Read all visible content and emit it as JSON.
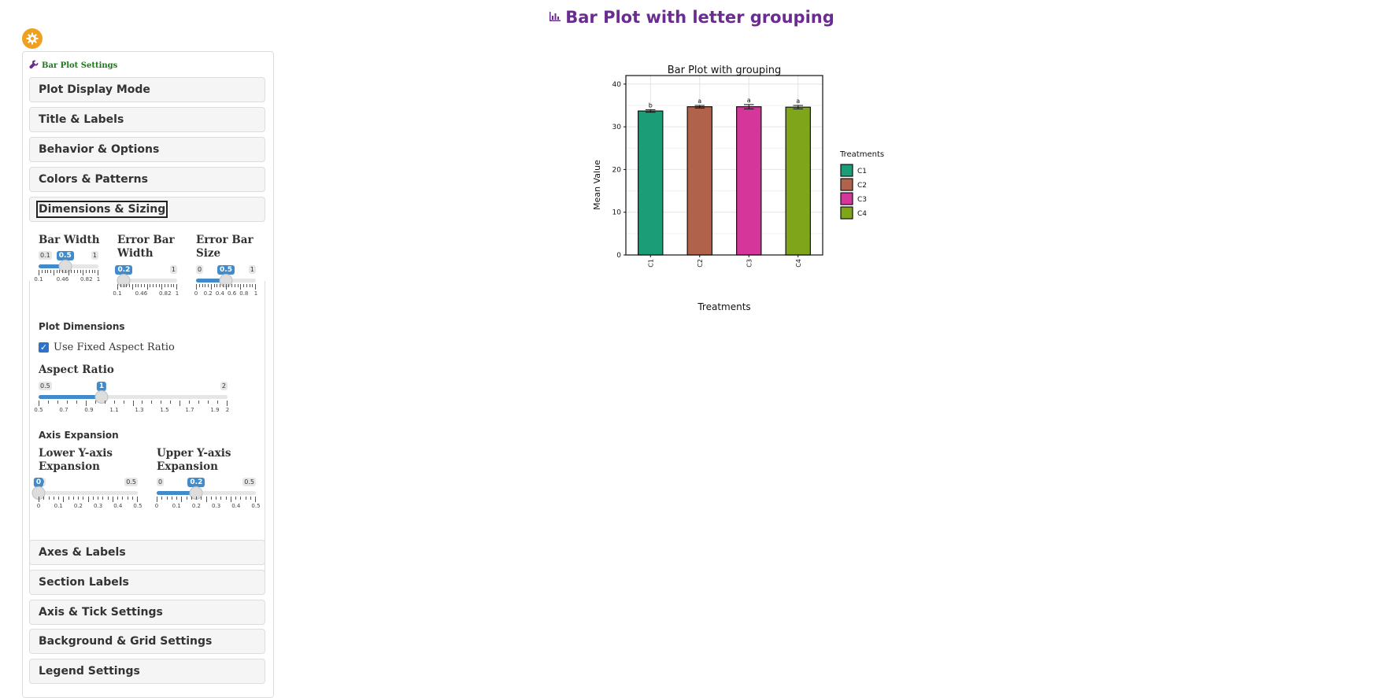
{
  "page": {
    "title": "Bar Plot with letter grouping",
    "accent_color": "#6a2c91",
    "title_icon": "bar-chart-icon"
  },
  "panel": {
    "header": "Bar Plot Settings",
    "header_icon": "wrench-icon",
    "gear_icon": "gear-icon",
    "accordions_top": [
      "Plot Display Mode",
      "Title & Labels",
      "Behavior & Options",
      "Colors & Patterns",
      "Dimensions & Sizing"
    ],
    "accordions_bottom": [
      "Axes & Labels",
      "Section Labels",
      "Axis & Tick Settings",
      "Background & Grid Settings",
      "Legend Settings"
    ],
    "dimensions": {
      "bar_width": {
        "label": "Bar Width",
        "min": "0.1",
        "max": "1",
        "value": "0.5",
        "value_num": 0.5,
        "lo": 0.1,
        "hi": 1,
        "ticks": [
          "0.1",
          "0.46",
          "0.82",
          "1"
        ]
      },
      "error_bar_width": {
        "label": "Error Bar Width",
        "min": "0.1",
        "max": "1",
        "value": "0.2",
        "value_num": 0.2,
        "lo": 0.1,
        "hi": 1,
        "ticks": [
          "0.1",
          "0.46",
          "0.82",
          "1"
        ]
      },
      "error_bar_size": {
        "label": "Error Bar Size",
        "min": "0",
        "max": "1",
        "value": "0.5",
        "value_num": 0.5,
        "lo": 0,
        "hi": 1,
        "ticks": [
          "0",
          "0.2",
          "0.4",
          "0.6",
          "0.8",
          "1"
        ]
      },
      "plot_dimensions_label": "Plot Dimensions",
      "fixed_aspect_label": "Use Fixed Aspect Ratio",
      "fixed_aspect_checked": true,
      "aspect_ratio": {
        "label": "Aspect Ratio",
        "min": "0.5",
        "max": "2",
        "value": "1",
        "value_num": 1,
        "lo": 0.5,
        "hi": 2,
        "ticks": [
          "0.5",
          "0.7",
          "0.9",
          "1.1",
          "1.3",
          "1.5",
          "1.7",
          "1.9",
          "2"
        ]
      },
      "axis_expansion_label": "Axis Expansion",
      "lower_y": {
        "label": "Lower Y-axis Expansion",
        "min": "0",
        "max": "0.5",
        "value": "0",
        "value_num": 0,
        "lo": 0,
        "hi": 0.5,
        "ticks": [
          "0",
          "0.1",
          "0.2",
          "0.3",
          "0.4",
          "0.5"
        ]
      },
      "upper_y": {
        "label": "Upper Y-axis Expansion",
        "min": "0",
        "max": "0.5",
        "value": "0.2",
        "value_num": 0.2,
        "lo": 0,
        "hi": 0.5,
        "ticks": [
          "0",
          "0.1",
          "0.2",
          "0.3",
          "0.4",
          "0.5"
        ]
      }
    }
  },
  "chart_data": {
    "type": "bar",
    "title": "Bar Plot with grouping",
    "xlabel": "Treatments",
    "ylabel": "Mean Value",
    "categories": [
      "C1",
      "C2",
      "C3",
      "C4"
    ],
    "values": [
      33.7,
      34.7,
      34.7,
      34.6
    ],
    "errors": [
      0.3,
      0.3,
      0.5,
      0.4
    ],
    "letters": [
      "b",
      "a",
      "a",
      "a"
    ],
    "colors": [
      "#1b9e77",
      "#b0634a",
      "#d4369a",
      "#7fa61a"
    ],
    "ylim": [
      0,
      42
    ],
    "yticks": [
      0,
      10,
      20,
      30,
      40
    ],
    "grid": true,
    "legend": {
      "title": "Treatments",
      "entries": [
        "C1",
        "C2",
        "C3",
        "C4"
      ],
      "placement": "right"
    }
  }
}
